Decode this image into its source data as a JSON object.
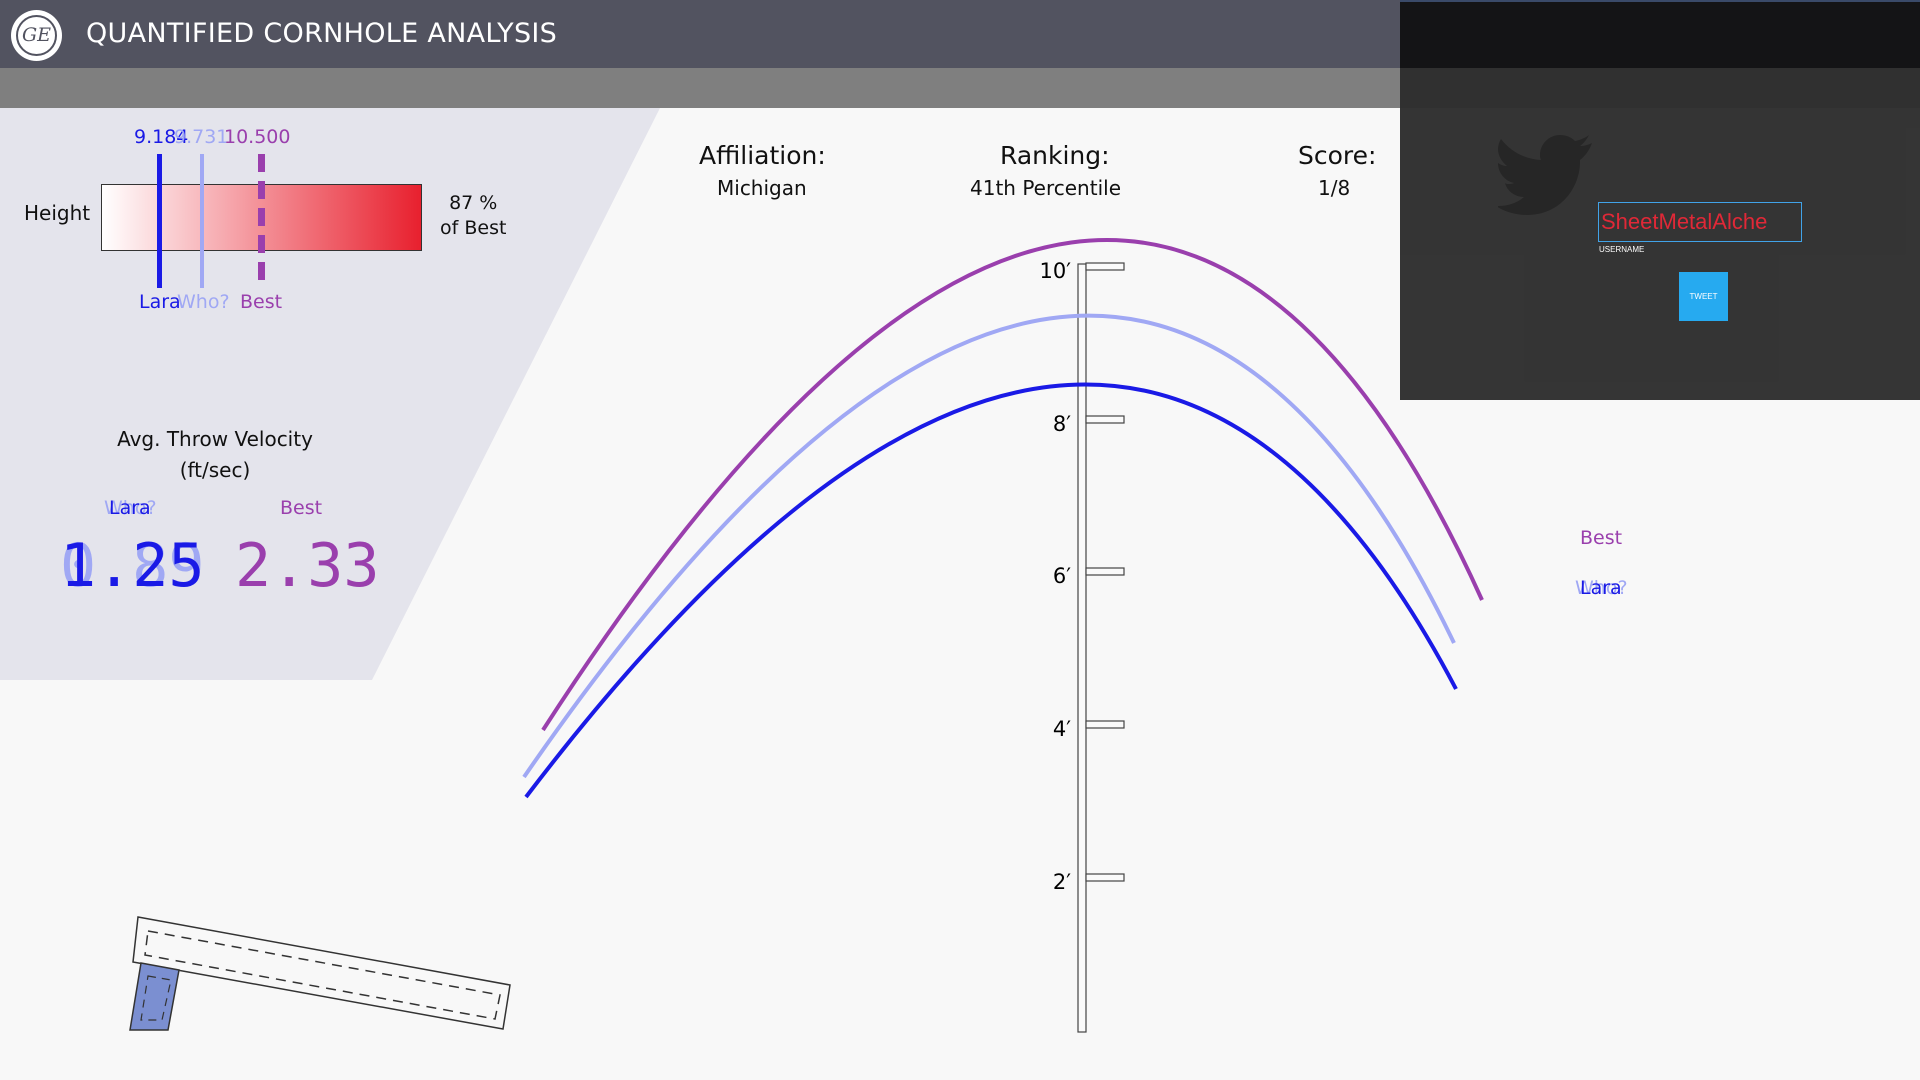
{
  "header": {
    "logo_text": "GE",
    "title": "QUANTIFIED CORNHOLE ANALYSIS"
  },
  "colors": {
    "lara": "#1a1ae6",
    "who": "#a0a8f4",
    "best": "#9a3fad",
    "header_bg": "#525360",
    "bar_end": "#e8202e"
  },
  "height_panel": {
    "label": "Height",
    "lara_value": "9.184",
    "who_value": "9.731",
    "best_value": "10.500",
    "lara_label": "Lara",
    "who_label": "Who?",
    "best_label": "Best",
    "percent": "87 %",
    "percent_caption": "of Best"
  },
  "velocity": {
    "title": "Avg. Throw Velocity",
    "unit": "(ft/sec)",
    "lara_label": "Lara",
    "who_label": "Who?",
    "best_label": "Best",
    "lara_value": "1.25",
    "who_value": "0.89",
    "best_value": "2.33"
  },
  "info": {
    "affiliation_label": "Affiliation:",
    "affiliation_value": "Michigan",
    "ranking_label": "Ranking:",
    "ranking_value": "41th Percentile",
    "score_label": "Score:",
    "score_value": "1/8"
  },
  "trajectory": {
    "ruler_ticks": [
      "10′",
      "8′",
      "6′",
      "4′",
      "2′"
    ],
    "legend_best": "Best",
    "legend_lara": "Lara",
    "legend_who": "Who?"
  },
  "twitter": {
    "icon": "twitter-bird-icon",
    "username_value": "SheetMetalAlche",
    "username_label": "USERNAME",
    "tweet_label": "TWEET"
  }
}
